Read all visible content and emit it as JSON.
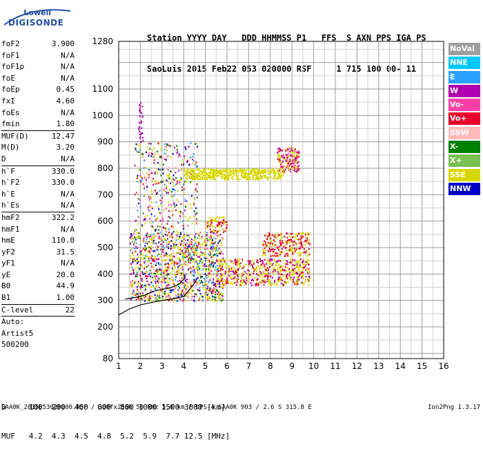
{
  "logo": {
    "line1": "Lowell",
    "line2": "DIGISONDE"
  },
  "header": {
    "line1": "Station YYYY DAY   DDD HHMMSS P1   FFS  S AXN PPS IGA PS",
    "line2": "SaoLuis 2015 Feb22 053 020000 RSF     1 715 100 00- 11"
  },
  "params": [
    {
      "name": "foF2",
      "value": "3.900"
    },
    {
      "name": "foF1",
      "value": "N/A"
    },
    {
      "name": "foF1p",
      "value": "N/A"
    },
    {
      "name": "foE",
      "value": "N/A"
    },
    {
      "name": "foEp",
      "value": "0.45"
    },
    {
      "name": "fxI",
      "value": "4.60"
    },
    {
      "name": "foEs",
      "value": "N/A"
    },
    {
      "name": "fmin",
      "value": "1.80"
    },
    {
      "sep": true
    },
    {
      "name": "MUF(D)",
      "value": "12.47"
    },
    {
      "name": "M(D)",
      "value": "3.20"
    },
    {
      "name": "D",
      "value": "N/A"
    },
    {
      "sep": true
    },
    {
      "name": "h`F",
      "value": "330.0"
    },
    {
      "name": "h`F2",
      "value": "330.0"
    },
    {
      "name": "h`E",
      "value": "N/A"
    },
    {
      "name": "h`Es",
      "value": "N/A"
    },
    {
      "sep": true
    },
    {
      "name": "hmF2",
      "value": "322.2"
    },
    {
      "name": "hmF1",
      "value": "N/A"
    },
    {
      "name": "hmE",
      "value": "110.0"
    },
    {
      "name": "yF2",
      "value": "31.5"
    },
    {
      "name": "yF1",
      "value": "N/A"
    },
    {
      "name": "yE",
      "value": "20.0"
    },
    {
      "name": "B0",
      "value": "44.9"
    },
    {
      "name": "B1",
      "value": "1.00"
    },
    {
      "sep": true
    },
    {
      "name": "C-level",
      "value": "22"
    },
    {
      "sep": true
    }
  ],
  "auto": {
    "line1": "Auto:",
    "line2": "Artist5",
    "line3": "500200"
  },
  "legend": [
    {
      "label": "NoVal",
      "color": "#9e9e9e"
    },
    {
      "label": "NNE",
      "color": "#00c8ff"
    },
    {
      "label": "E",
      "color": "#2aa0ff"
    },
    {
      "label": "W",
      "color": "#b000b0"
    },
    {
      "label": "Vo-",
      "color": "#ff3fa8"
    },
    {
      "label": "Vo+",
      "color": "#e8002a"
    },
    {
      "label": "SSW",
      "color": "#ffb8b8"
    },
    {
      "label": "X-",
      "color": "#008000"
    },
    {
      "label": "X+",
      "color": "#78c050"
    },
    {
      "label": "SSE",
      "color": "#d8d800"
    },
    {
      "label": "NNW",
      "color": "#0000c8"
    }
  ],
  "chart_data": {
    "type": "scatter",
    "x_ticks": [
      1,
      2,
      3,
      4,
      5,
      6,
      7,
      8,
      9,
      10,
      11,
      12,
      13,
      14,
      15,
      16
    ],
    "y_ticks": [
      80,
      200,
      300,
      400,
      500,
      600,
      700,
      800,
      900,
      1000,
      1100,
      1280
    ],
    "xlim": [
      1,
      16
    ],
    "ylim": [
      80,
      1280
    ],
    "grid": true,
    "profile_curve": [
      [
        1.0,
        245
      ],
      [
        1.5,
        268
      ],
      [
        2.0,
        283
      ],
      [
        2.5,
        292
      ],
      [
        3.0,
        300
      ],
      [
        3.5,
        306
      ],
      [
        4.0,
        315
      ],
      [
        4.3,
        345
      ],
      [
        4.6,
        375
      ]
    ],
    "trace_curve": [
      [
        1.3,
        305
      ],
      [
        1.8,
        312
      ],
      [
        2.2,
        320
      ],
      [
        2.6,
        335
      ],
      [
        3.0,
        342
      ],
      [
        3.4,
        348
      ],
      [
        3.8,
        362
      ],
      [
        4.1,
        390
      ]
    ]
  },
  "bottom": {
    "d_row": "D     100  200  400  600  800 1000 1500 3000 [km]",
    "muf_row": "MUF   4.2  4.3  4.5  4.8  5.2  5.9  7.7 12.5 [MHz]"
  },
  "footer": {
    "left": "SAA0K_2015053020000.RSF / 300fx256h 50 kHz 5.0 km / DPS-4 SAA0K 903 / 2.6 S 315.8 E",
    "right": "Ion2Png 1.3.17"
  }
}
